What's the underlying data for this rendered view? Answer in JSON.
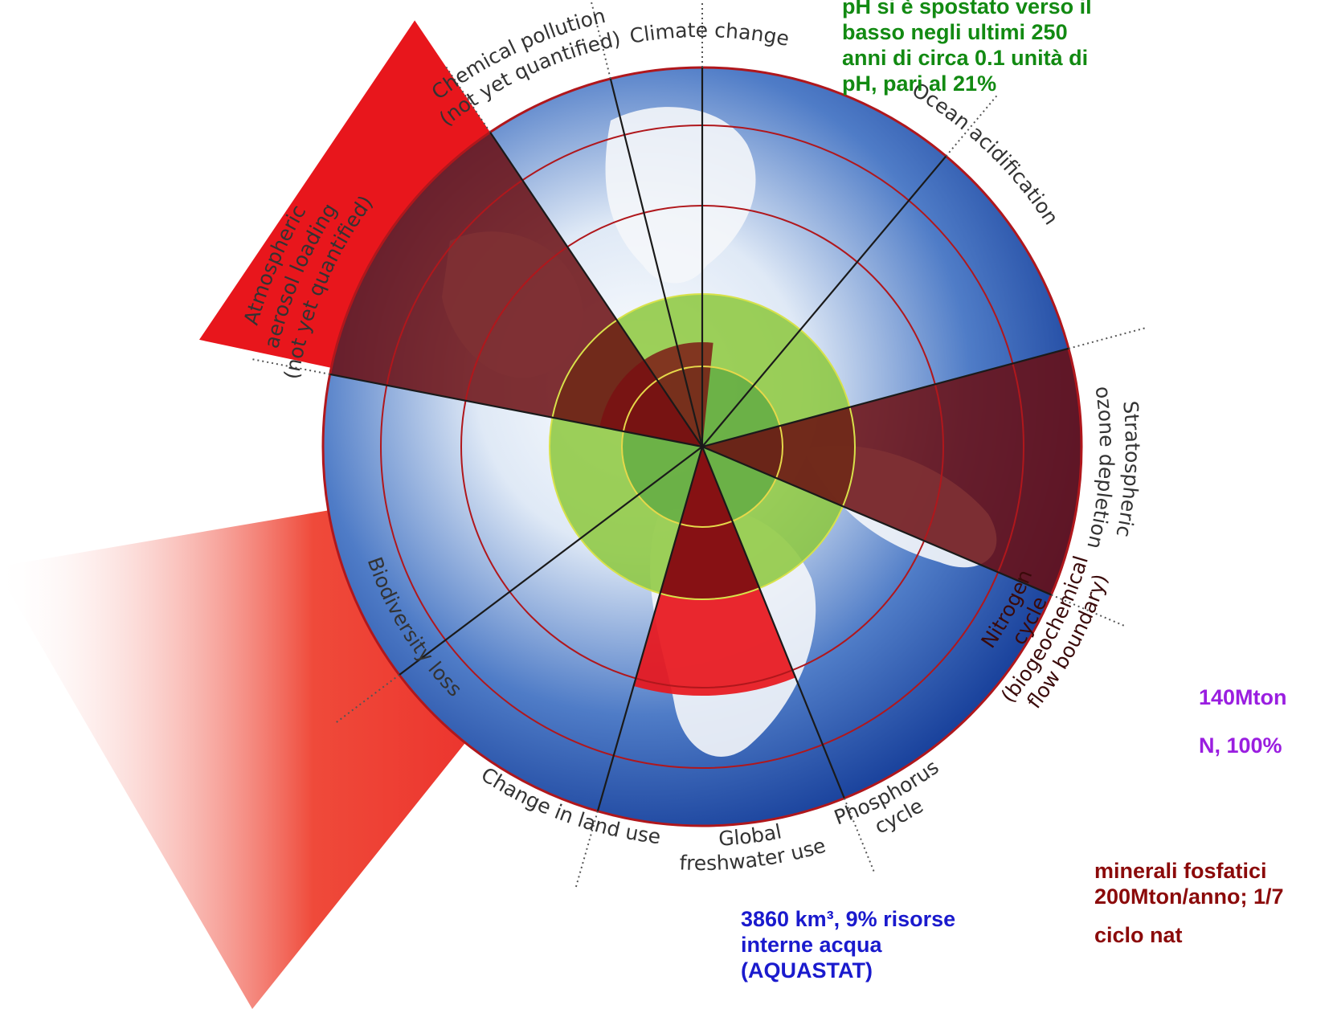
{
  "diagram": {
    "segments": [
      {
        "key": "climate",
        "label_lines": [
          "Climate change"
        ],
        "status": "exceeded"
      },
      {
        "key": "ocean",
        "label_lines": [
          "Ocean acidification"
        ],
        "status": "safe"
      },
      {
        "key": "ozone",
        "label_lines": [
          "Stratospheric",
          "ozone depletion"
        ],
        "status": "safe"
      },
      {
        "key": "nitrogen",
        "label_lines": [
          "Nitrogen",
          "cycle",
          "(biogeochemical",
          "flow boundary)"
        ],
        "status": "exceeded"
      },
      {
        "key": "phosphorus",
        "label_lines": [
          "Phosphorus",
          "cycle"
        ],
        "status": "safe"
      },
      {
        "key": "freshwater",
        "label_lines": [
          "Global",
          "freshwater use"
        ],
        "status": "safe"
      },
      {
        "key": "land",
        "label_lines": [
          "Change in land use"
        ],
        "status": "safe"
      },
      {
        "key": "biodiversity",
        "label_lines": [
          "Biodiversity loss"
        ],
        "status": "exceeded"
      },
      {
        "key": "aerosol",
        "label_lines": [
          "Atmospheric",
          "aerosol loading",
          "(not yet quantified)"
        ],
        "status": "not_quantified"
      },
      {
        "key": "chemical",
        "label_lines": [
          "Chemical pollution",
          "(not yet quantified)"
        ],
        "status": "not_quantified"
      }
    ],
    "colors": {
      "exceeded": "#e8161c",
      "safe_zone": "#8cc83c",
      "ring": "#b0171c",
      "ocean_blue": "#1a4fae"
    }
  },
  "notes": {
    "ocean": [
      "pH si è spostato verso il",
      "basso negli ultimi 250",
      "anni di circa 0.1 unità di",
      "pH, pari al 21%"
    ],
    "nitrogen_1": "140Mton",
    "nitrogen_2": "N, 100%",
    "phosphorus_1": "minerali fosfatici",
    "phosphorus_2": "200Mton/anno; 1/7",
    "phosphorus_3": "ciclo nat",
    "water_1": "3860 km³, 9% risorse",
    "water_2": "interne acqua",
    "water_3": "(AQUASTAT)"
  }
}
